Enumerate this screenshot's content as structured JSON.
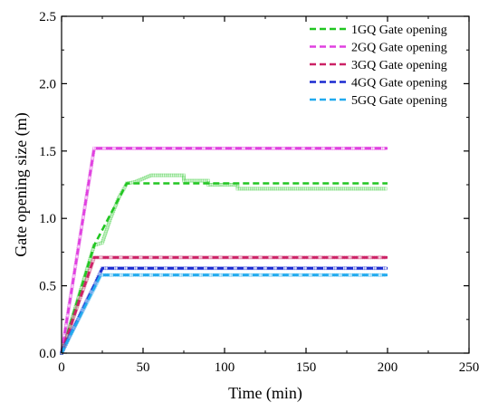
{
  "chart_data": {
    "type": "line",
    "xlabel": "Time (min)",
    "ylabel": "Gate opening size (m)",
    "xlim": [
      0,
      250
    ],
    "ylim": [
      0,
      2.5
    ],
    "xticks": [
      0,
      50,
      100,
      150,
      200,
      250
    ],
    "yticks": [
      0.0,
      0.5,
      1.0,
      1.5,
      2.0,
      2.5
    ],
    "xtick_labels": [
      "0",
      "50",
      "100",
      "150",
      "200",
      "250"
    ],
    "ytick_labels": [
      "0.0",
      "0.5",
      "1.0",
      "1.5",
      "2.0",
      "2.5"
    ],
    "grid": false,
    "legend_position": "top-right",
    "series": [
      {
        "name": "1GQ Gate opening",
        "color": "#22c622",
        "lines": [
          [
            0,
            0
          ],
          [
            20,
            0.8
          ],
          [
            40,
            1.26
          ],
          [
            200,
            1.26
          ]
        ],
        "points": [
          [
            0,
            0
          ],
          [
            5,
            0.2
          ],
          [
            10,
            0.4
          ],
          [
            15,
            0.6
          ],
          [
            20,
            0.8
          ],
          [
            25,
            0.82
          ],
          [
            30,
            1.0
          ],
          [
            35,
            1.15
          ],
          [
            40,
            1.26
          ],
          [
            45,
            1.27
          ],
          [
            55,
            1.32
          ],
          [
            75,
            1.32
          ],
          [
            75,
            1.28
          ],
          [
            90,
            1.28
          ],
          [
            90,
            1.25
          ],
          [
            108,
            1.25
          ],
          [
            108,
            1.22
          ],
          [
            200,
            1.22
          ]
        ]
      },
      {
        "name": "2GQ Gate opening",
        "color": "#e040e0",
        "lines": [
          [
            0,
            0
          ],
          [
            20,
            1.52
          ],
          [
            200,
            1.52
          ]
        ],
        "points": [
          [
            0,
            0
          ],
          [
            5,
            0.38
          ],
          [
            10,
            0.76
          ],
          [
            15,
            1.14
          ],
          [
            20,
            1.52
          ],
          [
            200,
            1.52
          ]
        ]
      },
      {
        "name": "3GQ Gate opening",
        "color": "#cc2266",
        "lines": [
          [
            0,
            0
          ],
          [
            20,
            0.71
          ],
          [
            200,
            0.71
          ]
        ],
        "points": [
          [
            0,
            0
          ],
          [
            5,
            0.18
          ],
          [
            10,
            0.36
          ],
          [
            15,
            0.53
          ],
          [
            20,
            0.71
          ],
          [
            200,
            0.71
          ]
        ]
      },
      {
        "name": "4GQ Gate opening",
        "color": "#1a2ad0",
        "lines": [
          [
            0,
            0
          ],
          [
            25,
            0.63
          ],
          [
            200,
            0.63
          ]
        ],
        "points": [
          [
            0,
            0
          ],
          [
            5,
            0.13
          ],
          [
            10,
            0.25
          ],
          [
            15,
            0.38
          ],
          [
            20,
            0.5
          ],
          [
            25,
            0.63
          ],
          [
            200,
            0.63
          ]
        ]
      },
      {
        "name": "5GQ Gate opening",
        "color": "#22aaee",
        "lines": [
          [
            0,
            0
          ],
          [
            24,
            0.58
          ],
          [
            200,
            0.58
          ]
        ],
        "points": [
          [
            0,
            0
          ],
          [
            5,
            0.12
          ],
          [
            10,
            0.24
          ],
          [
            15,
            0.36
          ],
          [
            20,
            0.48
          ],
          [
            24,
            0.58
          ],
          [
            200,
            0.58
          ]
        ]
      }
    ]
  }
}
